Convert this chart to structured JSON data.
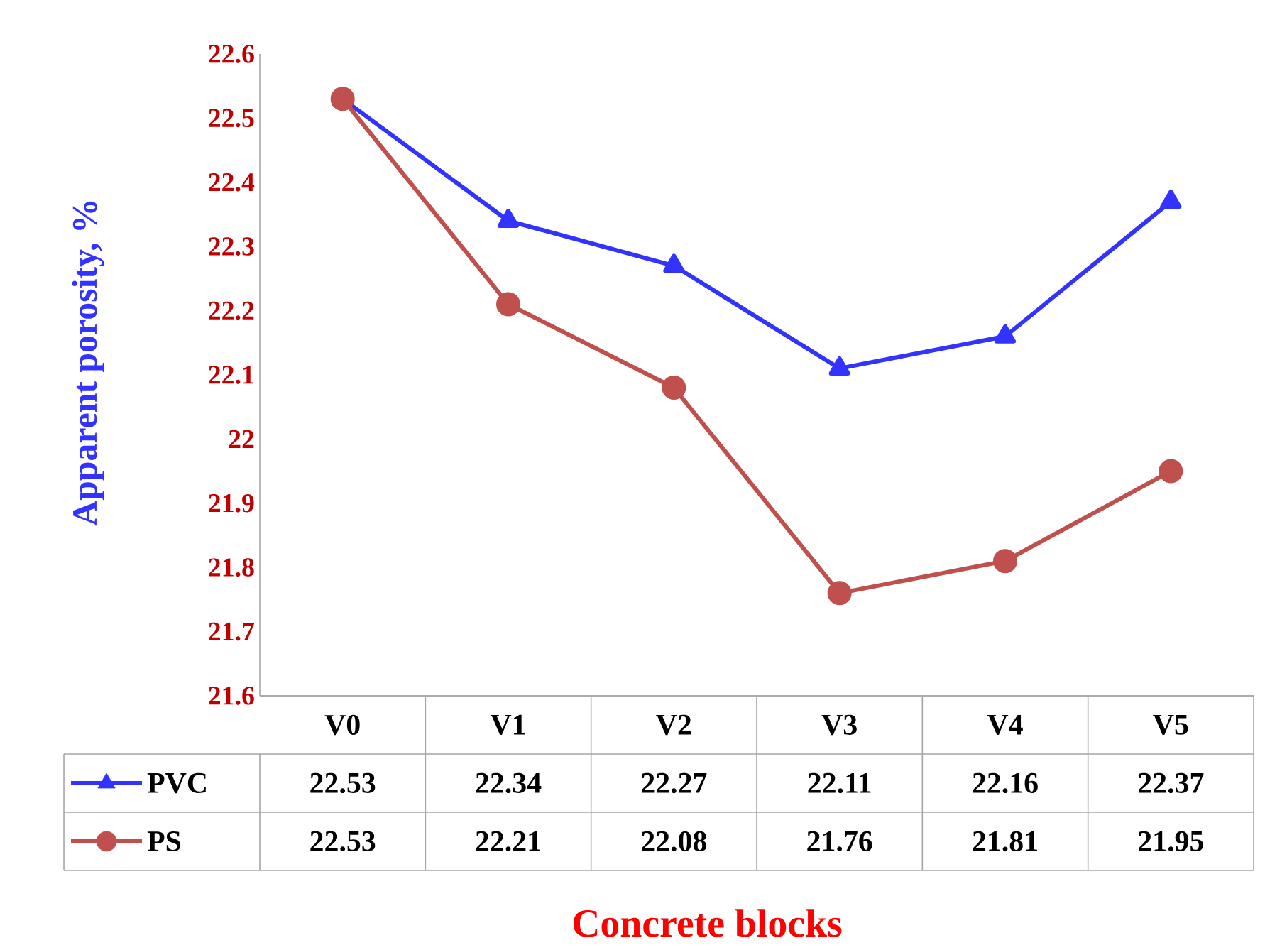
{
  "chart_data": {
    "type": "line",
    "xlabel": "Concrete blocks",
    "ylabel": "Apparent porosity, %",
    "categories": [
      "V0",
      "V1",
      "V2",
      "V3",
      "V4",
      "V5"
    ],
    "series": [
      {
        "name": "PVC",
        "color": "#3333ff",
        "marker": "triangle",
        "values": [
          22.53,
          22.34,
          22.27,
          22.11,
          22.16,
          22.37
        ]
      },
      {
        "name": "PS",
        "color": "#c0504d",
        "marker": "circle",
        "values": [
          22.53,
          22.21,
          22.08,
          21.76,
          21.81,
          21.95
        ]
      }
    ],
    "ylim": [
      21.6,
      22.6
    ],
    "yticks": [
      21.6,
      21.7,
      21.8,
      21.9,
      22,
      22.1,
      22.2,
      22.3,
      22.4,
      22.5,
      22.6
    ],
    "grid": false,
    "legend": "bottom left",
    "data_labels": true
  }
}
